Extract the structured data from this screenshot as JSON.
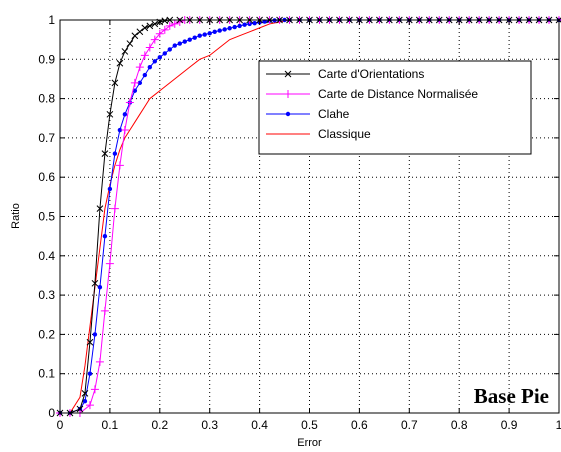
{
  "chart_data": {
    "type": "line",
    "title": "",
    "xlabel": "Error",
    "ylabel": "Ratio",
    "xlim": [
      0,
      1
    ],
    "ylim": [
      0,
      1
    ],
    "xticks": [
      "0",
      "0.1",
      "0.2",
      "0.3",
      "0.4",
      "0.5",
      "0.6",
      "0.7",
      "0.8",
      "0.9",
      "1"
    ],
    "yticks": [
      "0",
      "0.1",
      "0.2",
      "0.3",
      "0.4",
      "0.5",
      "0.6",
      "0.7",
      "0.8",
      "0.9",
      "1"
    ],
    "grid": true,
    "legend_position": "top-right",
    "annotation": "Base Pie",
    "series": [
      {
        "name": "Carte d'Orientations",
        "color": "#000000",
        "marker": "x",
        "x": [
          0,
          0.02,
          0.04,
          0.05,
          0.06,
          0.07,
          0.08,
          0.09,
          0.1,
          0.11,
          0.12,
          0.13,
          0.14,
          0.15,
          0.16,
          0.17,
          0.18,
          0.19,
          0.2,
          0.21,
          0.22,
          0.24,
          0.26,
          0.28,
          0.3,
          0.32,
          0.34,
          0.36,
          0.38,
          0.4,
          0.42,
          0.44,
          0.46,
          0.48,
          0.5,
          0.52,
          0.54,
          0.56,
          0.58,
          0.6,
          0.62,
          0.64,
          0.66,
          0.68,
          0.7,
          0.72,
          0.74,
          0.76,
          0.78,
          0.8,
          0.82,
          0.84,
          0.86,
          0.88,
          0.9,
          0.92,
          0.94,
          0.96,
          0.98,
          1.0
        ],
        "y": [
          0,
          0,
          0.01,
          0.05,
          0.18,
          0.33,
          0.52,
          0.66,
          0.76,
          0.84,
          0.89,
          0.92,
          0.94,
          0.96,
          0.97,
          0.98,
          0.985,
          0.99,
          0.995,
          0.998,
          1,
          1,
          1,
          1,
          1,
          1,
          1,
          1,
          1,
          1,
          1,
          1,
          1,
          1,
          1,
          1,
          1,
          1,
          1,
          1,
          1,
          1,
          1,
          1,
          1,
          1,
          1,
          1,
          1,
          1,
          1,
          1,
          1,
          1,
          1,
          1,
          1,
          1,
          1,
          1
        ]
      },
      {
        "name": "Carte de Distance Normalisée",
        "color": "#ff00ff",
        "marker": "+",
        "x": [
          0,
          0.02,
          0.04,
          0.06,
          0.07,
          0.08,
          0.09,
          0.1,
          0.11,
          0.12,
          0.13,
          0.14,
          0.15,
          0.16,
          0.17,
          0.18,
          0.19,
          0.2,
          0.21,
          0.22,
          0.23,
          0.24,
          0.25,
          0.26,
          0.28,
          0.3,
          0.32,
          0.34,
          0.36,
          0.38,
          0.4,
          0.42,
          0.44,
          0.46,
          0.48,
          0.5,
          0.52,
          0.54,
          0.56,
          0.58,
          0.6,
          0.62,
          0.64,
          0.66,
          0.68,
          0.7,
          0.72,
          0.74,
          0.76,
          0.78,
          0.8,
          0.82,
          0.84,
          0.86,
          0.88,
          0.9,
          0.92,
          0.94,
          0.96,
          0.98,
          1.0
        ],
        "y": [
          0,
          0,
          0,
          0.02,
          0.06,
          0.13,
          0.26,
          0.38,
          0.52,
          0.63,
          0.72,
          0.79,
          0.84,
          0.88,
          0.91,
          0.93,
          0.95,
          0.965,
          0.975,
          0.985,
          0.99,
          0.995,
          1,
          1,
          1,
          1,
          1,
          1,
          1,
          1,
          1,
          1,
          1,
          1,
          1,
          1,
          1,
          1,
          1,
          1,
          1,
          1,
          1,
          1,
          1,
          1,
          1,
          1,
          1,
          1,
          1,
          1,
          1,
          1,
          1,
          1,
          1,
          1,
          1,
          1,
          1
        ]
      },
      {
        "name": "Clahe",
        "color": "#0000ff",
        "marker": "dot",
        "x": [
          0,
          0.02,
          0.04,
          0.05,
          0.06,
          0.07,
          0.08,
          0.09,
          0.1,
          0.11,
          0.12,
          0.13,
          0.14,
          0.15,
          0.16,
          0.17,
          0.18,
          0.19,
          0.2,
          0.21,
          0.22,
          0.23,
          0.24,
          0.25,
          0.26,
          0.27,
          0.28,
          0.29,
          0.3,
          0.31,
          0.32,
          0.33,
          0.34,
          0.35,
          0.36,
          0.37,
          0.38,
          0.39,
          0.4,
          0.41,
          0.42,
          0.43,
          0.44,
          0.45,
          0.46,
          0.48,
          0.5,
          0.52,
          0.54,
          0.56,
          0.58,
          0.6,
          0.62,
          0.64,
          0.66,
          0.68,
          0.7,
          0.72,
          0.74,
          0.76,
          0.78,
          0.8,
          0.82,
          0.84,
          0.86,
          0.88,
          0.9,
          0.92,
          0.94,
          0.96,
          0.98,
          1.0
        ],
        "y": [
          0,
          0,
          0.01,
          0.03,
          0.1,
          0.2,
          0.32,
          0.45,
          0.57,
          0.66,
          0.72,
          0.76,
          0.79,
          0.82,
          0.84,
          0.86,
          0.88,
          0.895,
          0.905,
          0.915,
          0.925,
          0.935,
          0.94,
          0.945,
          0.95,
          0.955,
          0.96,
          0.963,
          0.966,
          0.97,
          0.973,
          0.976,
          0.979,
          0.982,
          0.985,
          0.988,
          0.99,
          0.992,
          0.994,
          0.996,
          0.998,
          0.999,
          1,
          1,
          1,
          1,
          1,
          1,
          1,
          1,
          1,
          1,
          1,
          1,
          1,
          1,
          1,
          1,
          1,
          1,
          1,
          1,
          1,
          1,
          1,
          1,
          1,
          1,
          1,
          1,
          1,
          1
        ]
      },
      {
        "name": "Classique",
        "color": "#ff0000",
        "marker": "none",
        "x": [
          0,
          0.02,
          0.04,
          0.05,
          0.06,
          0.07,
          0.08,
          0.09,
          0.1,
          0.11,
          0.12,
          0.13,
          0.14,
          0.15,
          0.16,
          0.17,
          0.18,
          0.19,
          0.2,
          0.22,
          0.24,
          0.26,
          0.28,
          0.3,
          0.32,
          0.34,
          0.36,
          0.38,
          0.4,
          0.42,
          0.44,
          0.46,
          0.48,
          0.5,
          0.6,
          0.7,
          0.8,
          0.9,
          1.0
        ],
        "y": [
          0,
          0,
          0.04,
          0.12,
          0.22,
          0.32,
          0.42,
          0.52,
          0.58,
          0.63,
          0.67,
          0.7,
          0.72,
          0.74,
          0.76,
          0.78,
          0.8,
          0.81,
          0.82,
          0.84,
          0.86,
          0.88,
          0.9,
          0.91,
          0.93,
          0.95,
          0.96,
          0.97,
          0.98,
          0.99,
          0.995,
          1,
          1,
          1,
          1,
          1,
          1,
          1,
          1
        ]
      }
    ]
  }
}
